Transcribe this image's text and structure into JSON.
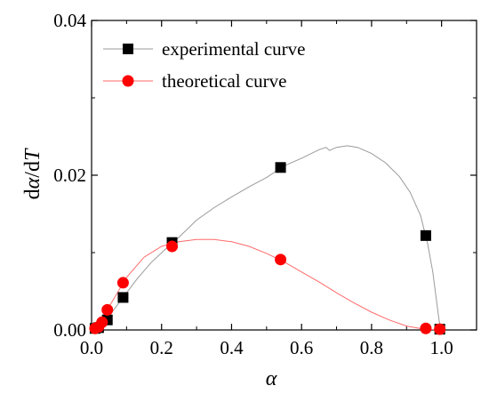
{
  "chart_data": {
    "type": "line",
    "title": "",
    "xlabel": "α",
    "ylabel": "dα/dT",
    "ylabel_parts": {
      "lead": "d",
      "alpha": "α",
      "sep": "/d",
      "var": "T"
    },
    "xlim": [
      0.0,
      1.1
    ],
    "ylim": [
      0.0,
      0.04
    ],
    "x_ticks": [
      0.0,
      0.2,
      0.4,
      0.6,
      0.8,
      1.0
    ],
    "x_tick_labels": [
      "0.0",
      "0.2",
      "0.4",
      "0.6",
      "0.8",
      "1.0"
    ],
    "y_ticks": [
      0.0,
      0.02,
      0.04
    ],
    "y_tick_labels": [
      "0.00",
      "0.02",
      "0.04"
    ],
    "grid": false,
    "legend_position": "top-left",
    "series": [
      {
        "name": "experimental curve",
        "marker": "square",
        "marker_color": "#000000",
        "line_color": "#9a9a9a",
        "markers": [
          {
            "x": 0.01,
            "y": 0.0002
          },
          {
            "x": 0.02,
            "y": 0.0003
          },
          {
            "x": 0.045,
            "y": 0.0013
          },
          {
            "x": 0.09,
            "y": 0.0042
          },
          {
            "x": 0.23,
            "y": 0.0113
          },
          {
            "x": 0.54,
            "y": 0.021
          },
          {
            "x": 0.955,
            "y": 0.0122
          },
          {
            "x": 0.995,
            "y": 0.0001
          }
        ],
        "curve": [
          [
            0.0,
            0.0
          ],
          [
            0.02,
            0.0005
          ],
          [
            0.05,
            0.0018
          ],
          [
            0.09,
            0.0042
          ],
          [
            0.13,
            0.0066
          ],
          [
            0.17,
            0.0087
          ],
          [
            0.21,
            0.0104
          ],
          [
            0.25,
            0.012
          ],
          [
            0.3,
            0.0142
          ],
          [
            0.35,
            0.0158
          ],
          [
            0.4,
            0.0172
          ],
          [
            0.45,
            0.0185
          ],
          [
            0.5,
            0.0197
          ],
          [
            0.55,
            0.0212
          ],
          [
            0.6,
            0.0222
          ],
          [
            0.65,
            0.0233
          ],
          [
            0.67,
            0.0236
          ],
          [
            0.68,
            0.0232
          ],
          [
            0.7,
            0.0236
          ],
          [
            0.73,
            0.0238
          ],
          [
            0.76,
            0.0236
          ],
          [
            0.8,
            0.0228
          ],
          [
            0.84,
            0.0216
          ],
          [
            0.88,
            0.0198
          ],
          [
            0.91,
            0.0178
          ],
          [
            0.94,
            0.0148
          ],
          [
            0.96,
            0.0112
          ],
          [
            0.975,
            0.0075
          ],
          [
            0.985,
            0.004
          ],
          [
            0.993,
            0.0012
          ],
          [
            1.0,
            0.0
          ]
        ]
      },
      {
        "name": "theoretical curve",
        "marker": "circle",
        "marker_color": "#ff0000",
        "line_color": "#ff6a6a",
        "markers": [
          {
            "x": 0.01,
            "y": 0.0002
          },
          {
            "x": 0.02,
            "y": 0.0004
          },
          {
            "x": 0.03,
            "y": 0.001
          },
          {
            "x": 0.045,
            "y": 0.0026
          },
          {
            "x": 0.09,
            "y": 0.0061
          },
          {
            "x": 0.23,
            "y": 0.0108
          },
          {
            "x": 0.54,
            "y": 0.0091
          },
          {
            "x": 0.955,
            "y": 0.0002
          },
          {
            "x": 0.995,
            "y": 0.0001
          }
        ],
        "curve": [
          [
            0.0,
            0.0
          ],
          [
            0.02,
            0.0008
          ],
          [
            0.05,
            0.003
          ],
          [
            0.1,
            0.0068
          ],
          [
            0.15,
            0.0094
          ],
          [
            0.2,
            0.0108
          ],
          [
            0.25,
            0.0114
          ],
          [
            0.3,
            0.0117
          ],
          [
            0.35,
            0.0117
          ],
          [
            0.4,
            0.0114
          ],
          [
            0.45,
            0.0108
          ],
          [
            0.5,
            0.0099
          ],
          [
            0.55,
            0.0088
          ],
          [
            0.6,
            0.0075
          ],
          [
            0.65,
            0.0062
          ],
          [
            0.7,
            0.0048
          ],
          [
            0.75,
            0.0035
          ],
          [
            0.8,
            0.0023
          ],
          [
            0.85,
            0.0013
          ],
          [
            0.9,
            0.0005
          ],
          [
            0.95,
            0.0001
          ],
          [
            1.0,
            0.0
          ]
        ]
      }
    ]
  }
}
